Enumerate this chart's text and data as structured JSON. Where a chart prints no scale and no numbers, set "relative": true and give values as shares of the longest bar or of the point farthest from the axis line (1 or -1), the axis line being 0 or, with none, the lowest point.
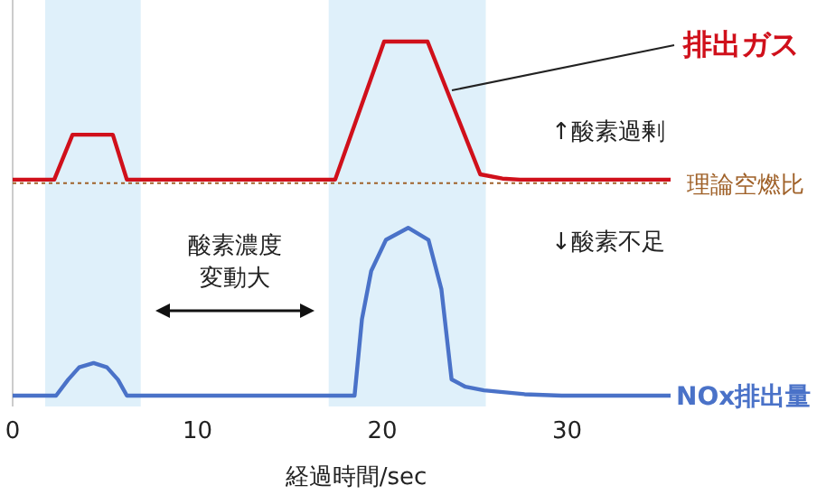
{
  "chart_data": {
    "type": "line",
    "relative": true,
    "xlabel": "経過時間/sec",
    "xlim": [
      0,
      35.6
    ],
    "xticks": [
      0,
      10,
      20,
      30
    ],
    "tick_labels": "x",
    "grid": false,
    "legend": false,
    "marker": "none",
    "line_style": "solid",
    "series": [
      {
        "name": "排出ガス",
        "color": "#d0101b",
        "x": [
          0,
          2.25,
          3.24,
          5.42,
          6.18,
          17.45,
          20.1,
          22.45,
          25.3,
          26.5,
          27.45,
          35.6
        ],
        "values": [
          0.61,
          0.61,
          0.737,
          0.737,
          0.61,
          0.61,
          1,
          1,
          0.625,
          0.613,
          0.61,
          0.61
        ]
      },
      {
        "name": "NOx排出量",
        "color": "#4a72c8",
        "x": [
          0,
          2.35,
          3.0,
          3.6,
          4.38,
          5.1,
          5.7,
          6.18,
          18.5,
          18.9,
          19.4,
          20.2,
          21.4,
          22.5,
          23.2,
          23.75,
          24.5,
          25.5,
          27.7,
          29.7,
          35.6
        ],
        "values": [
          0,
          0,
          0.045,
          0.08,
          0.092,
          0.08,
          0.045,
          0,
          0,
          0.216,
          0.352,
          0.44,
          0.474,
          0.44,
          0.3,
          0.046,
          0.025,
          0.015,
          0.004,
          0,
          0
        ]
      }
    ],
    "ref_lines": [
      {
        "axis": "y",
        "value": 0.6,
        "label": "理論空燃比",
        "color": "#a0622a",
        "line_style": "dotted"
      }
    ],
    "bands": [
      {
        "axis": "x",
        "from": 1.76,
        "to": 6.93,
        "color": "#dff0fa"
      },
      {
        "axis": "x",
        "from": 17.1,
        "to": 25.6,
        "color": "#dff0fa"
      }
    ],
    "annotations": [
      "↑酸素過剰",
      "↓酸素不足",
      "酸素濃度",
      "変動大"
    ]
  }
}
